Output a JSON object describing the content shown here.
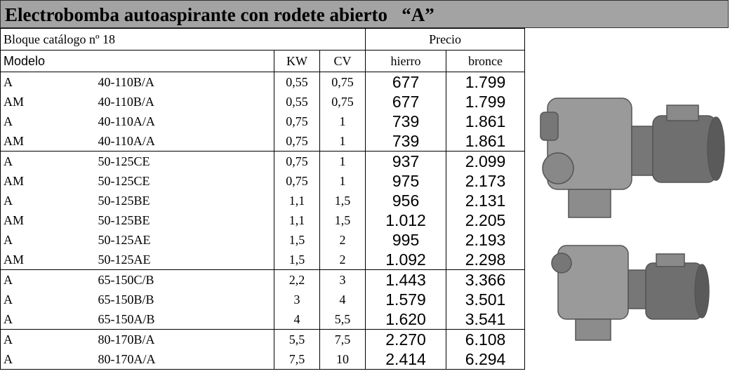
{
  "title": "Electrobomba autoaspirante con rodete abierto   “A”",
  "catalog": "Bloque catálogo nº 18",
  "price_header": "Precio",
  "columns": [
    "Modelo",
    "KW",
    "CV",
    "hierro",
    "bronce"
  ],
  "groups": [
    [
      [
        "A",
        "40-110B/A",
        "0,55",
        "0,75",
        "677",
        "1.799"
      ],
      [
        "AM",
        "40-110B/A",
        "0,55",
        "0,75",
        "677",
        "1.799"
      ],
      [
        "A",
        "40-110A/A",
        "0,75",
        "1",
        "739",
        "1.861"
      ],
      [
        "AM",
        "40-110A/A",
        "0,75",
        "1",
        "739",
        "1.861"
      ]
    ],
    [
      [
        "A",
        "50-125CE",
        "0,75",
        "1",
        "937",
        "2.099"
      ],
      [
        "AM",
        "50-125CE",
        "0,75",
        "1",
        "975",
        "2.173"
      ],
      [
        "A",
        "50-125BE",
        "1,1",
        "1,5",
        "956",
        "2.131"
      ],
      [
        "AM",
        "50-125BE",
        "1,1",
        "1,5",
        "1.012",
        "2.205"
      ],
      [
        "A",
        "50-125AE",
        "1,5",
        "2",
        "995",
        "2.193"
      ],
      [
        "AM",
        "50-125AE",
        "1,5",
        "2",
        "1.092",
        "2.298"
      ]
    ],
    [
      [
        "A",
        "65-150C/B",
        "2,2",
        "3",
        "1.443",
        "3.366"
      ],
      [
        "A",
        "65-150B/B",
        "3",
        "4",
        "1.579",
        "3.501"
      ],
      [
        "A",
        "65-150A/B",
        "4",
        "5,5",
        "1.620",
        "3.541"
      ]
    ],
    [
      [
        "A",
        "80-170B/A",
        "5,5",
        "7,5",
        "2.270",
        "6.108"
      ],
      [
        "A",
        "80-170A/A",
        "7,5",
        "10",
        "2.414",
        "6.294"
      ]
    ]
  ]
}
